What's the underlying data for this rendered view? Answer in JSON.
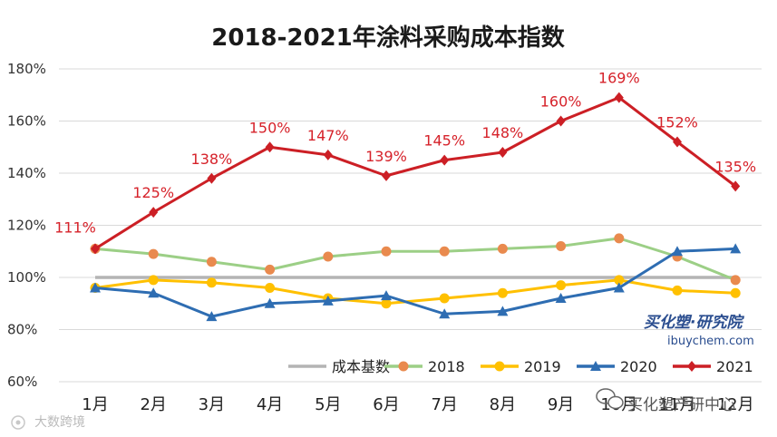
{
  "chart_data": {
    "type": "line",
    "title": "2018-2021年涂料采购成本指数",
    "xlabel": "",
    "ylabel": "",
    "categories": [
      "1月",
      "2月",
      "3月",
      "4月",
      "5月",
      "6月",
      "7月",
      "8月",
      "9月",
      "10月",
      "11月",
      "12月"
    ],
    "ylim": [
      60,
      180
    ],
    "yticks": [
      "60%",
      "80%",
      "100%",
      "120%",
      "140%",
      "160%",
      "180%"
    ],
    "grid": true,
    "legend_position": "bottom",
    "series": [
      {
        "name": "成本基数",
        "color": "#b4b4b4",
        "marker": "none",
        "values": [
          100,
          100,
          100,
          100,
          100,
          100,
          100,
          100,
          100,
          100,
          100,
          100
        ]
      },
      {
        "name": "2018",
        "color": "#9ccf86",
        "marker_color": "#e98a4e",
        "marker": "circle",
        "values": [
          111,
          109,
          106,
          103,
          108,
          110,
          110,
          111,
          112,
          115,
          108,
          99
        ]
      },
      {
        "name": "2019",
        "color": "#ffc000",
        "marker": "circle",
        "values": [
          96,
          99,
          98,
          96,
          92,
          90,
          92,
          94,
          97,
          99,
          95,
          94
        ]
      },
      {
        "name": "2020",
        "color": "#2e6db2",
        "marker": "triangle",
        "values": [
          96,
          94,
          85,
          90,
          91,
          93,
          86,
          87,
          92,
          96,
          110,
          111
        ]
      },
      {
        "name": "2021",
        "color": "#cc1f25",
        "marker": "diamond",
        "values": [
          111,
          125,
          138,
          150,
          147,
          139,
          145,
          148,
          160,
          169,
          152,
          135
        ]
      }
    ],
    "data_labels": [
      "111%",
      "125%",
      "138%",
      "150%",
      "147%",
      "139%",
      "145%",
      "148%",
      "160%",
      "169%",
      "152%",
      "135%"
    ]
  },
  "watermarks": {
    "brand": "买化塑·研究院",
    "site": "ibuychem.com",
    "bottom_left": "大数跨境",
    "wechat": "买化塑产研中心"
  }
}
